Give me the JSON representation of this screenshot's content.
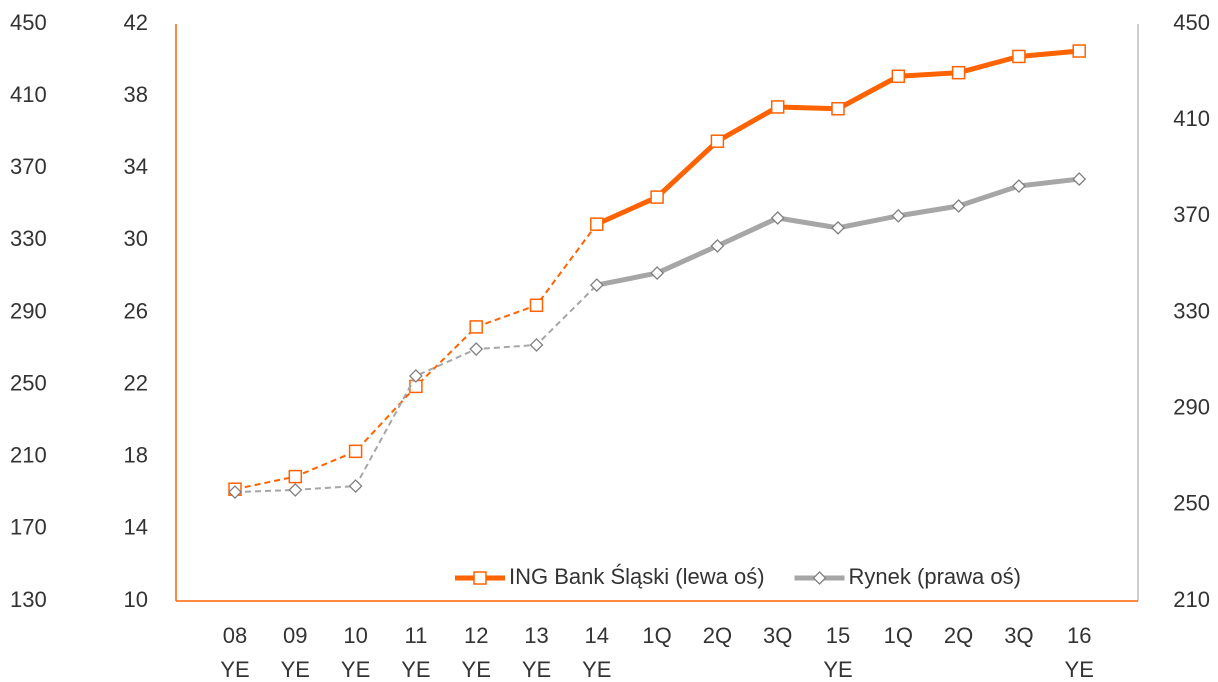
{
  "chart_data": {
    "type": "line",
    "categories": [
      [
        "08",
        "YE"
      ],
      [
        "09",
        "YE"
      ],
      [
        "10",
        "YE"
      ],
      [
        "11",
        "YE"
      ],
      [
        "12",
        "YE"
      ],
      [
        "13",
        "YE"
      ],
      [
        "14",
        "YE"
      ],
      [
        "1Q"
      ],
      [
        "2Q"
      ],
      [
        "3Q"
      ],
      [
        "15",
        "YE"
      ],
      [
        "1Q"
      ],
      [
        "2Q"
      ],
      [
        "3Q"
      ],
      [
        "16",
        "YE"
      ]
    ],
    "series": [
      {
        "name": "ING Bank Śląski (lewa oś)",
        "color": "#ff6200",
        "marker": "square",
        "dash_until": 6,
        "axis": "y",
        "values": [
          16.2,
          16.9,
          18.3,
          21.9,
          25.2,
          26.4,
          30.9,
          32.4,
          35.5,
          37.4,
          37.3,
          39.1,
          39.3,
          40.2,
          40.5
        ]
      },
      {
        "name": "Rynek (prawa oś)",
        "color": "#a6a6a6",
        "marker": "diamond",
        "dash_until": 6,
        "axis": "y2",
        "values": [
          255.3,
          256.2,
          257.8,
          303.6,
          314.8,
          316.5,
          341.4,
          346.4,
          357.7,
          369.3,
          365.2,
          370.2,
          374.3,
          382.6,
          385.5
        ]
      }
    ],
    "ylim": [
      10,
      42
    ],
    "yticks": [
      10,
      14,
      18,
      22,
      26,
      30,
      34,
      38,
      42
    ],
    "y2lim": [
      210,
      450
    ],
    "y2ticks": [
      210,
      250,
      290,
      330,
      370,
      410,
      450
    ],
    "y3lim": [
      130,
      450
    ],
    "y3ticks": [
      130,
      170,
      210,
      250,
      290,
      330,
      370,
      410,
      450
    ],
    "legend": "lower right",
    "grid": false
  }
}
